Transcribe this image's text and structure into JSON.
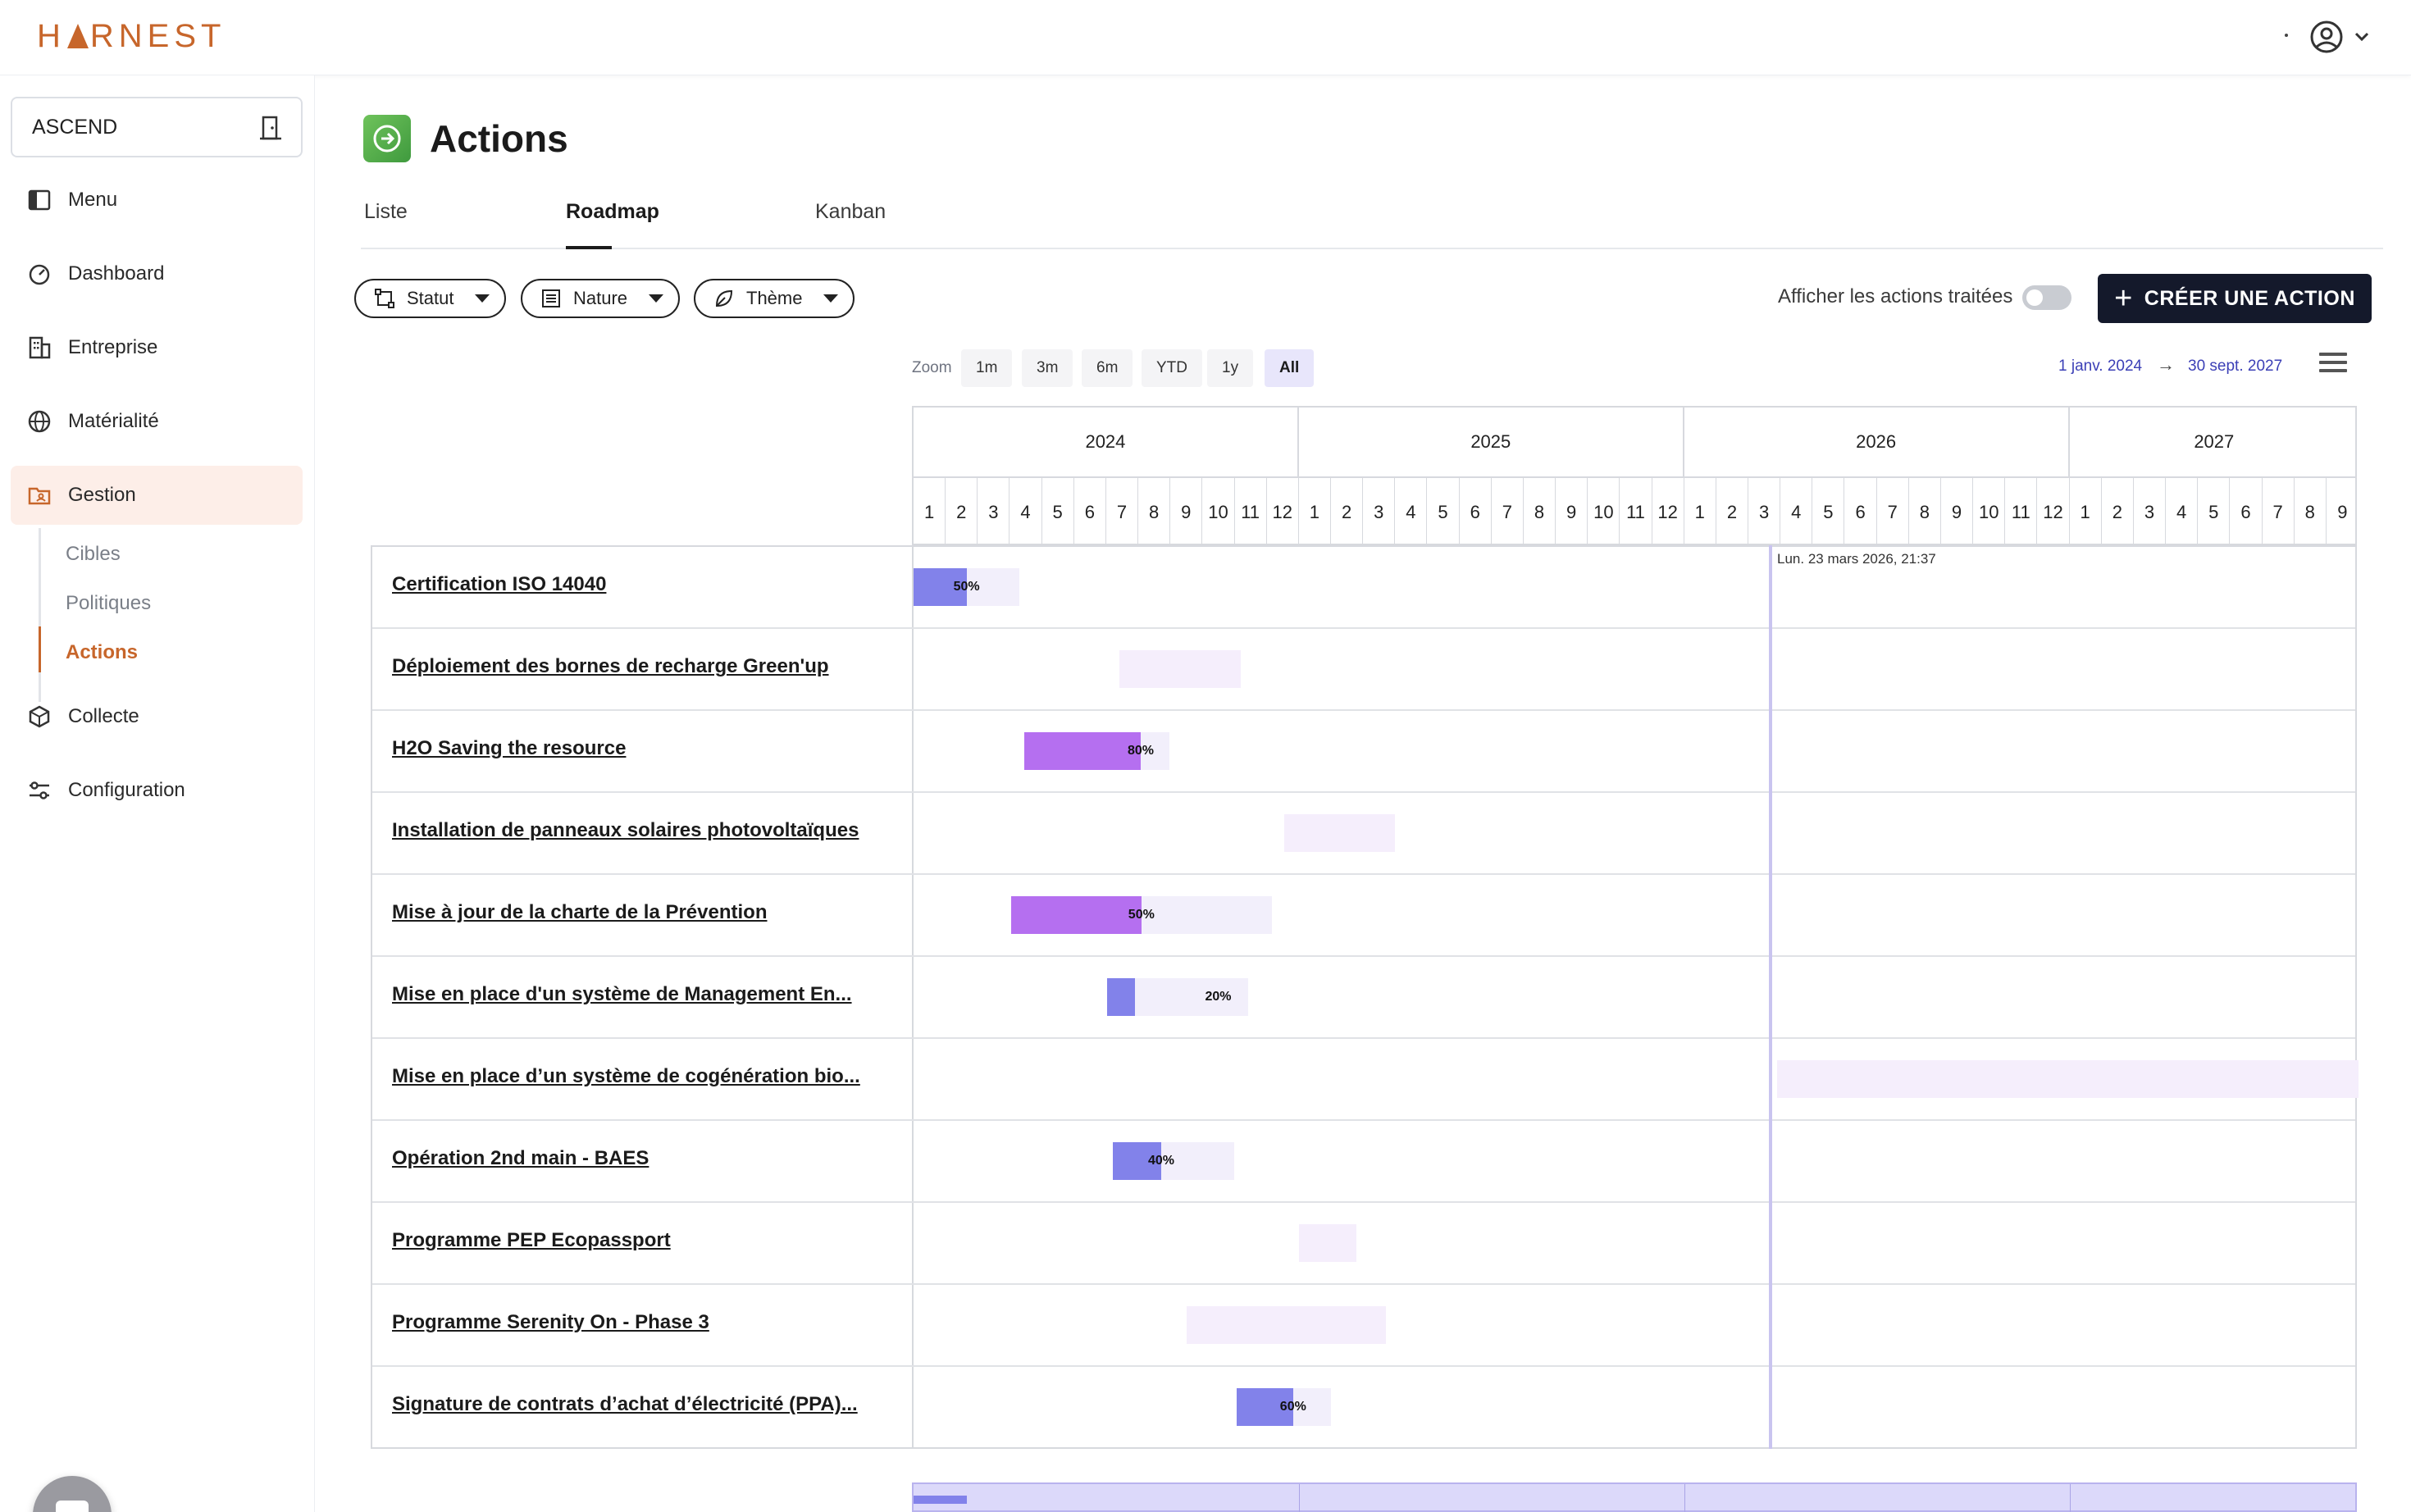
{
  "app": {
    "logo_text": "HARNEST",
    "colors": {
      "brand": "#c7662b",
      "primary_dark": "#14192b",
      "bar_blue": "#8282ea",
      "bar_purple": "#b56ff0",
      "track": "#f2effb"
    }
  },
  "sidebar": {
    "org_selector": {
      "value": "ASCEND",
      "icon": "door-icon"
    },
    "items": [
      {
        "label": "Menu",
        "icon": "sidebar-toggle-icon"
      },
      {
        "label": "Dashboard",
        "icon": "gauge-icon"
      },
      {
        "label": "Entreprise",
        "icon": "building-icon"
      },
      {
        "label": "Matérialité",
        "icon": "globe-icon"
      },
      {
        "label": "Gestion",
        "icon": "folder-user-icon",
        "active": true
      },
      {
        "label": "Collecte",
        "icon": "box-icon"
      },
      {
        "label": "Configuration",
        "icon": "sliders-icon"
      }
    ],
    "sub_items": [
      {
        "label": "Cibles"
      },
      {
        "label": "Politiques"
      },
      {
        "label": "Actions",
        "active": true
      }
    ]
  },
  "page": {
    "title": "Actions",
    "icon": "arrow-circle-icon",
    "tabs": [
      {
        "label": "Liste"
      },
      {
        "label": "Roadmap",
        "active": true
      },
      {
        "label": "Kanban"
      }
    ],
    "filters": [
      {
        "label": "Statut",
        "icon": "flow-icon"
      },
      {
        "label": "Nature",
        "icon": "list-icon"
      },
      {
        "label": "Thème",
        "icon": "leaf-icon"
      }
    ],
    "show_treated_label": "Afficher les actions traitées",
    "show_treated_enabled": false,
    "create_button": "CRÉER UNE ACTION"
  },
  "roadmap": {
    "zoom_label": "Zoom",
    "zoom_options": [
      {
        "label": "1m"
      },
      {
        "label": "3m"
      },
      {
        "label": "6m"
      },
      {
        "label": "YTD"
      },
      {
        "label": "1y"
      },
      {
        "label": "All",
        "active": true
      }
    ],
    "range_from": "1 janv. 2024",
    "range_arrow": "→",
    "range_to": "30 sept. 2027",
    "years": [
      {
        "label": "2024",
        "months": 12
      },
      {
        "label": "2025",
        "months": 12
      },
      {
        "label": "2026",
        "months": 12
      },
      {
        "label": "2027",
        "months": 9
      }
    ],
    "month_labels": [
      "1",
      "2",
      "3",
      "4",
      "5",
      "6",
      "7",
      "8",
      "9",
      "10",
      "11",
      "12",
      "1",
      "2",
      "3",
      "4",
      "5",
      "6",
      "7",
      "8",
      "9",
      "10",
      "11",
      "12",
      "1",
      "2",
      "3",
      "4",
      "5",
      "6",
      "7",
      "8",
      "9",
      "10",
      "11",
      "12",
      "1",
      "2",
      "3",
      "4",
      "5",
      "6",
      "7",
      "8",
      "9"
    ],
    "today_label": "Lun. 23 mars 2026, 21:37",
    "today_month_offset": 26.74,
    "tasks": [
      {
        "name": "Certification ISO 14040",
        "start": 0.0,
        "end": 3.3,
        "progress": 0.5,
        "progress_label": "50%",
        "color": "blue",
        "style": "normal"
      },
      {
        "name": "Déploiement des bornes de recharge Green'up",
        "start": 6.4,
        "end": 10.2,
        "progress": 0,
        "progress_label": "",
        "color": "purple",
        "style": "light"
      },
      {
        "name": "H2O Saving the resource",
        "start": 3.45,
        "end": 7.98,
        "progress": 0.8,
        "progress_label": "80%",
        "color": "purple",
        "style": "normal"
      },
      {
        "name": "Installation de panneaux solaires photovoltaïques",
        "start": 11.55,
        "end": 15.0,
        "progress": 0,
        "progress_label": "",
        "color": "purple",
        "style": "light"
      },
      {
        "name": "Mise à jour de la charte de la Prévention",
        "start": 3.03,
        "end": 11.16,
        "progress": 0.5,
        "progress_label": "50%",
        "color": "purple",
        "style": "normal"
      },
      {
        "name": "Mise en place d'un système de Management En...",
        "start": 6.03,
        "end": 10.42,
        "progress": 0.2,
        "progress_label": "20%",
        "color": "blue",
        "style": "normal"
      },
      {
        "name": "Mise en place d’un système de cogénération bio...",
        "start": 26.9,
        "end": 45.0,
        "progress": 0,
        "progress_label": "",
        "color": "purple",
        "style": "light"
      },
      {
        "name": "Opération 2nd main - BAES",
        "start": 6.2,
        "end": 9.98,
        "progress": 0.4,
        "progress_label": "40%",
        "color": "blue",
        "style": "normal"
      },
      {
        "name": "Programme PEP Ecopassport",
        "start": 12.0,
        "end": 13.8,
        "progress": 0,
        "progress_label": "",
        "color": "purple",
        "style": "light"
      },
      {
        "name": "Programme Serenity On - Phase 3",
        "start": 8.5,
        "end": 14.7,
        "progress": 0,
        "progress_label": "",
        "color": "purple",
        "style": "light"
      },
      {
        "name": "Signature de contrats d’achat d’électricité (PPA)...",
        "start": 10.05,
        "end": 13.0,
        "progress": 0.6,
        "progress_label": "60%",
        "color": "blue",
        "style": "normal"
      }
    ]
  }
}
